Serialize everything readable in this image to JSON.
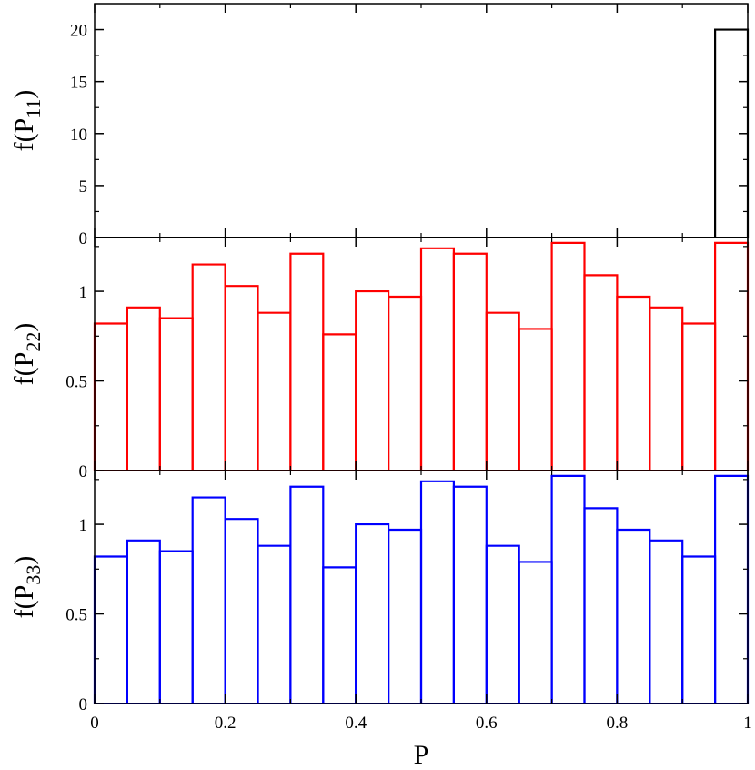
{
  "chart_data": [
    {
      "type": "bar",
      "ylabel": "f(P11)",
      "ylabel_main": "f(P",
      "ylabel_sub": "11",
      "ylabel_close": ")",
      "color": "#000000",
      "bin_edges": [
        0,
        0.05,
        0.1,
        0.15,
        0.2,
        0.25,
        0.3,
        0.35,
        0.4,
        0.45,
        0.5,
        0.55,
        0.6,
        0.65,
        0.7,
        0.75,
        0.8,
        0.85,
        0.9,
        0.95,
        1.0
      ],
      "values": [
        0,
        0,
        0,
        0,
        0,
        0,
        0,
        0,
        0,
        0,
        0,
        0,
        0,
        0,
        0,
        0,
        0,
        0,
        0,
        20
      ],
      "xlim": [
        0,
        1
      ],
      "ylim": [
        0,
        22.5
      ],
      "yticks": [
        0,
        5,
        10,
        15,
        20
      ],
      "ytick_labels": [
        "0",
        "5",
        "10",
        "15",
        "20"
      ],
      "grid": false
    },
    {
      "type": "bar",
      "ylabel": "f(P22)",
      "ylabel_main": "f(P",
      "ylabel_sub": "22",
      "ylabel_close": ")",
      "color": "#ff0000",
      "bin_edges": [
        0,
        0.05,
        0.1,
        0.15,
        0.2,
        0.25,
        0.3,
        0.35,
        0.4,
        0.45,
        0.5,
        0.55,
        0.6,
        0.65,
        0.7,
        0.75,
        0.8,
        0.85,
        0.9,
        0.95,
        1.0
      ],
      "values": [
        0.82,
        0.91,
        0.85,
        1.15,
        1.03,
        0.88,
        1.21,
        0.76,
        1.0,
        0.97,
        1.24,
        1.21,
        0.88,
        0.79,
        1.27,
        1.09,
        0.97,
        0.91,
        0.82,
        1.27
      ],
      "xlim": [
        0,
        1
      ],
      "ylim": [
        0,
        1.3
      ],
      "yticks": [
        0,
        0.5,
        1
      ],
      "ytick_labels": [
        "0",
        "0.5",
        "1"
      ],
      "grid": false
    },
    {
      "type": "bar",
      "ylabel": "f(P33)",
      "ylabel_main": "f(P",
      "ylabel_sub": "33",
      "ylabel_close": ")",
      "color": "#0000ff",
      "bin_edges": [
        0,
        0.05,
        0.1,
        0.15,
        0.2,
        0.25,
        0.3,
        0.35,
        0.4,
        0.45,
        0.5,
        0.55,
        0.6,
        0.65,
        0.7,
        0.75,
        0.8,
        0.85,
        0.9,
        0.95,
        1.0
      ],
      "values": [
        0.82,
        0.91,
        0.85,
        1.15,
        1.03,
        0.88,
        1.21,
        0.76,
        1.0,
        0.97,
        1.24,
        1.21,
        0.88,
        0.79,
        1.27,
        1.09,
        0.97,
        0.91,
        0.82,
        1.27
      ],
      "xlim": [
        0,
        1
      ],
      "ylim": [
        0,
        1.3
      ],
      "yticks": [
        0,
        0.5,
        1
      ],
      "ytick_labels": [
        "0",
        "0.5",
        "1"
      ],
      "grid": false
    }
  ],
  "shared_x": {
    "label": "P",
    "ticks": [
      0,
      0.2,
      0.4,
      0.6,
      0.8,
      1
    ],
    "tick_labels": [
      "0",
      "0.2",
      "0.4",
      "0.6",
      "0.8",
      "1"
    ],
    "minor_ticks": [
      0.1,
      0.3,
      0.5,
      0.7,
      0.9
    ]
  }
}
